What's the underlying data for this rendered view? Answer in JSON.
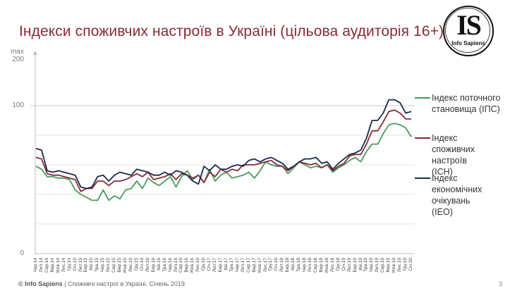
{
  "header": {
    "title": "Індекси споживчих настроїв в Україні (цільова аудиторія 16+)"
  },
  "logo": {
    "initials": "IS",
    "name": "Info Sapiens"
  },
  "footer": {
    "brand": "© Info Sapiens",
    "separator": " | ",
    "text": "Споживчі настрої в Україні. Січень 2019",
    "page_number": "3"
  },
  "colors": {
    "title": "#8b2a35",
    "ips": "#4a9a5c",
    "ich": "#8b2a35",
    "ieo": "#1b2a4e",
    "axis": "#bfbfbf",
    "grid": "#e6e6e6"
  },
  "chart_data": {
    "type": "line",
    "title": "Індекси споживчих настроїв в Україні (цільова аудиторія 16+)",
    "xlabel": "",
    "ylabel": "",
    "y_axis_labels": [
      "max",
      "200",
      "100",
      "0"
    ],
    "yticks": [
      0,
      100,
      200
    ],
    "ylim": [
      0,
      200
    ],
    "grid": true,
    "legend_position": "right",
    "x": [
      "Чер.14",
      "Лип.14",
      "Сер.14",
      "Вер.14",
      "Жов.14",
      "Лис.14",
      "Гру.14",
      "Січ.15",
      "Лют.15",
      "Бер.15",
      "Кві.15",
      "Тра.15",
      "Чер.15",
      "Лип.15",
      "Сер.15",
      "Вер.15",
      "Жов.15",
      "Лис.15",
      "Гру.15",
      "Січ.16",
      "Лют.16",
      "Бер.16",
      "Кві.16",
      "Тра.16",
      "Чер.16",
      "Лип.16",
      "Сер.16",
      "Вер.16",
      "Жов.16",
      "Лис.16",
      "Гру.16",
      "Січ.17",
      "Лют.17",
      "Бер.17",
      "Кві.17",
      "Тра.17",
      "Чер.17",
      "Лип.17",
      "Сер.17",
      "Вер.17",
      "Жов.17",
      "Лис.17",
      "Гру.17",
      "Січ.18",
      "Лют.18",
      "Бер.18",
      "Кві.18",
      "Тра.18",
      "Чер.18",
      "Лип.18",
      "Сер.18",
      "Вер.18",
      "Жов.18",
      "Лис.18",
      "Гру.18",
      "Січ.19",
      "Лют.19",
      "Бер.19",
      "Кві.19",
      "Тра.19",
      "Чер.19",
      "Лип.19",
      "Сер.19",
      "Вер.19",
      "Жов.19",
      "Лис.19",
      "Гру.19",
      "Січ.20"
    ],
    "series": [
      {
        "name": "Індекс поточного становища (ІПС)",
        "color": "#4a9a5c",
        "values": [
          59,
          57,
          52,
          52,
          51,
          51,
          50,
          43,
          40,
          38,
          36,
          36,
          43,
          36,
          39,
          37,
          43,
          44,
          49,
          44,
          51,
          48,
          46,
          49,
          52,
          45,
          52,
          56,
          50,
          53,
          48,
          57,
          49,
          53,
          55,
          51,
          52,
          53,
          55,
          51,
          56,
          62,
          60,
          59,
          59,
          54,
          58,
          62,
          60,
          58,
          59,
          58,
          60,
          55,
          58,
          60,
          63,
          65,
          62,
          69,
          74,
          74,
          81,
          87,
          88,
          87,
          85,
          79
        ]
      },
      {
        "name": "Індекс споживчих настроїв (ІСН)",
        "color": "#8b2a35",
        "values": [
          65,
          64,
          54,
          53,
          53,
          52,
          51,
          50,
          42,
          44,
          44,
          49,
          49,
          46,
          49,
          49,
          50,
          52,
          54,
          52,
          55,
          50,
          51,
          52,
          54,
          50,
          54,
          53,
          51,
          53,
          48,
          55,
          52,
          57,
          55,
          57,
          56,
          60,
          60,
          60,
          61,
          62,
          63,
          60,
          59,
          56,
          59,
          62,
          61,
          60,
          61,
          58,
          60,
          56,
          59,
          61,
          66,
          67,
          67,
          74,
          83,
          83,
          89,
          96,
          97,
          95,
          91,
          91
        ]
      },
      {
        "name": "Індекс економічних очікувань (ІЕО)",
        "color": "#1b2a4e",
        "values": [
          71,
          70,
          56,
          55,
          56,
          55,
          54,
          53,
          45,
          44,
          45,
          52,
          53,
          49,
          53,
          55,
          54,
          53,
          57,
          56,
          55,
          53,
          53,
          55,
          53,
          56,
          55,
          53,
          49,
          47,
          59,
          56,
          60,
          57,
          57,
          59,
          60,
          59,
          63,
          64,
          62,
          64,
          65,
          63,
          61,
          57,
          59,
          62,
          64,
          64,
          65,
          61,
          62,
          57,
          61,
          64,
          67,
          68,
          70,
          78,
          90,
          90,
          95,
          104,
          104,
          102,
          95,
          96
        ]
      }
    ]
  }
}
